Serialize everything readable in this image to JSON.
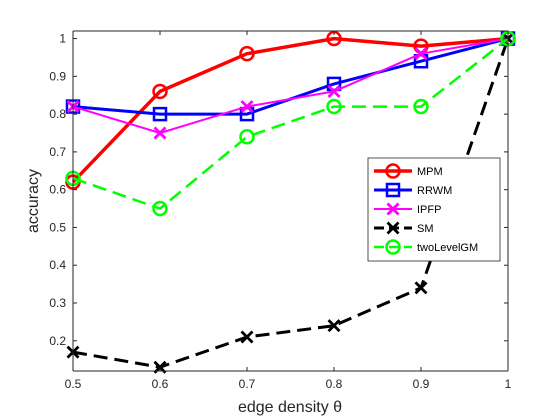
{
  "chart_data": {
    "type": "line",
    "title": "",
    "xlabel": "edge density θ",
    "ylabel": "accuracy",
    "x": [
      0.5,
      0.6,
      0.7,
      0.8,
      0.9,
      1
    ],
    "x_ticks": [
      "0.5",
      "0.6",
      "0.7",
      "0.8",
      "0.9",
      "1"
    ],
    "y_ticks": [
      "0.2",
      "0.3",
      "0.4",
      "0.5",
      "0.6",
      "0.7",
      "0.8",
      "0.9",
      "1"
    ],
    "xlim": [
      0.5,
      1
    ],
    "ylim": [
      0.12,
      1.02
    ],
    "grid": false,
    "legend_position": "right",
    "series": [
      {
        "name": "MPM",
        "values": [
          0.62,
          0.86,
          0.96,
          1.0,
          0.98,
          1.0
        ],
        "color": "#ff0000",
        "marker": "circle",
        "dash": "solid",
        "linewidth": 3.5
      },
      {
        "name": "RRWM",
        "values": [
          0.82,
          0.8,
          0.8,
          0.88,
          0.94,
          1.0
        ],
        "color": "#0000ff",
        "marker": "square",
        "dash": "solid",
        "linewidth": 3
      },
      {
        "name": "IPFP",
        "values": [
          0.82,
          0.75,
          0.82,
          0.86,
          0.96,
          1.0
        ],
        "color": "#ff00ff",
        "marker": "x",
        "dash": "solid",
        "linewidth": 2
      },
      {
        "name": "SM",
        "values": [
          0.17,
          0.13,
          0.21,
          0.24,
          0.34,
          1.0
        ],
        "color": "#000000",
        "marker": "x",
        "dash": "dashed",
        "linewidth": 3
      },
      {
        "name": "twoLevelGM",
        "values": [
          0.63,
          0.55,
          0.74,
          0.82,
          0.82,
          1.0
        ],
        "color": "#00ff00",
        "marker": "circle",
        "dash": "dashed",
        "linewidth": 2.5
      }
    ]
  }
}
